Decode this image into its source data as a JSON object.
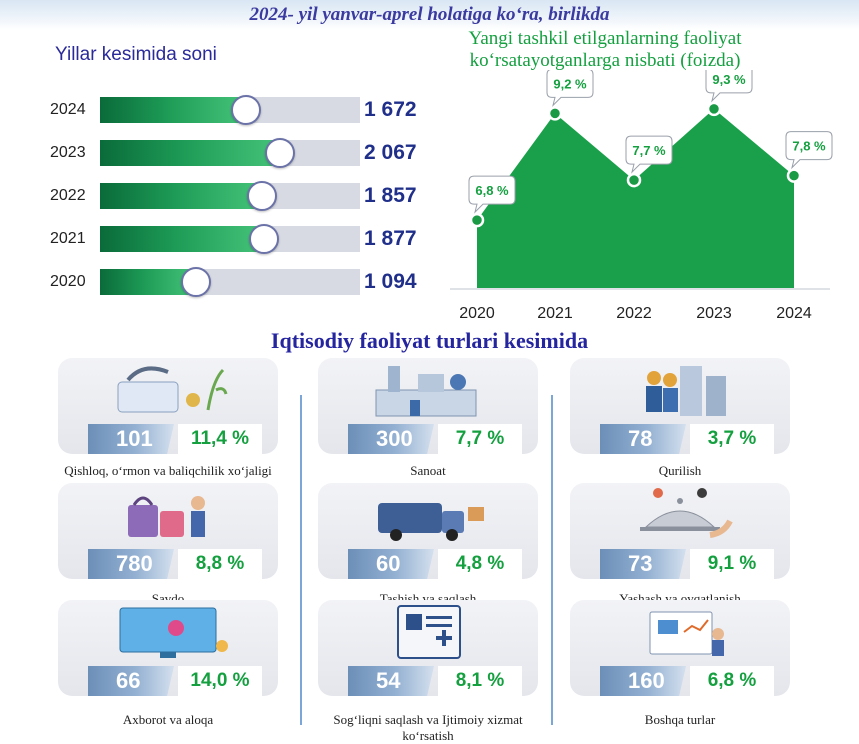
{
  "header": {
    "title": "2024- yil yanvar-aprel holatiga ko‘ra, birlikda"
  },
  "chart_data": [
    {
      "type": "bar",
      "orientation": "horizontal",
      "title": "Yillar kesimida soni",
      "categories": [
        "2024",
        "2023",
        "2022",
        "2021",
        "2020"
      ],
      "values": [
        1672,
        2067,
        1857,
        1877,
        1094
      ],
      "value_labels": [
        "1 672",
        "2 067",
        "1 857",
        "1 877",
        "1 094"
      ],
      "xlim": [
        0,
        3000
      ],
      "color": "#1d9a55"
    },
    {
      "type": "area",
      "title": "Yangi tashkil etilganlarning faoliyat ko‘rsatayotganlarga nisbati (foizda)",
      "x": [
        "2020",
        "2021",
        "2022",
        "2023",
        "2024"
      ],
      "values": [
        6.8,
        9.2,
        7.7,
        9.3,
        7.8
      ],
      "value_labels": [
        "6,8 %",
        "9,2 %",
        "7,7 %",
        "9,3 %",
        "7,8 %"
      ],
      "ylim": [
        0,
        10
      ],
      "color": "#1aa04a"
    }
  ],
  "sectors": {
    "title": "Iqtisodiy faoliyat turlari kesimida",
    "items": [
      {
        "count": "101",
        "pct": "11,4 %",
        "label": "Qishloq, o‘rmon va baliqchilik xo‘jaligi",
        "icon": "farm-robot-icon"
      },
      {
        "count": "300",
        "pct": "7,7 %",
        "label": "Sanoat",
        "icon": "factory-icon"
      },
      {
        "count": "78",
        "pct": "3,7 %",
        "label": "Qurilish",
        "icon": "construction-icon"
      },
      {
        "count": "780",
        "pct": "8,8 %",
        "label": "Savdo",
        "icon": "shopping-icon"
      },
      {
        "count": "60",
        "pct": "4,8 %",
        "label": "Tashish va saqlash",
        "icon": "delivery-truck-icon"
      },
      {
        "count": "73",
        "pct": "9,1 %",
        "label": "Yashash va ovqatlanish",
        "icon": "food-service-icon"
      },
      {
        "count": "66",
        "pct": "14,0 %",
        "label": "Axborot va aloqa",
        "icon": "it-monitor-icon"
      },
      {
        "count": "54",
        "pct": "8,1 %",
        "label": "Sog‘liqni saqlash va Ijtimoiy xizmat ko‘rsatish",
        "icon": "health-card-icon"
      },
      {
        "count": "160",
        "pct": "6,8 %",
        "label": "Boshqa turlar",
        "icon": "analytics-board-icon"
      }
    ]
  },
  "colors": {
    "green": "#1d9a55",
    "navy": "#1f2f8a",
    "title_blue": "#2a2a9a"
  }
}
